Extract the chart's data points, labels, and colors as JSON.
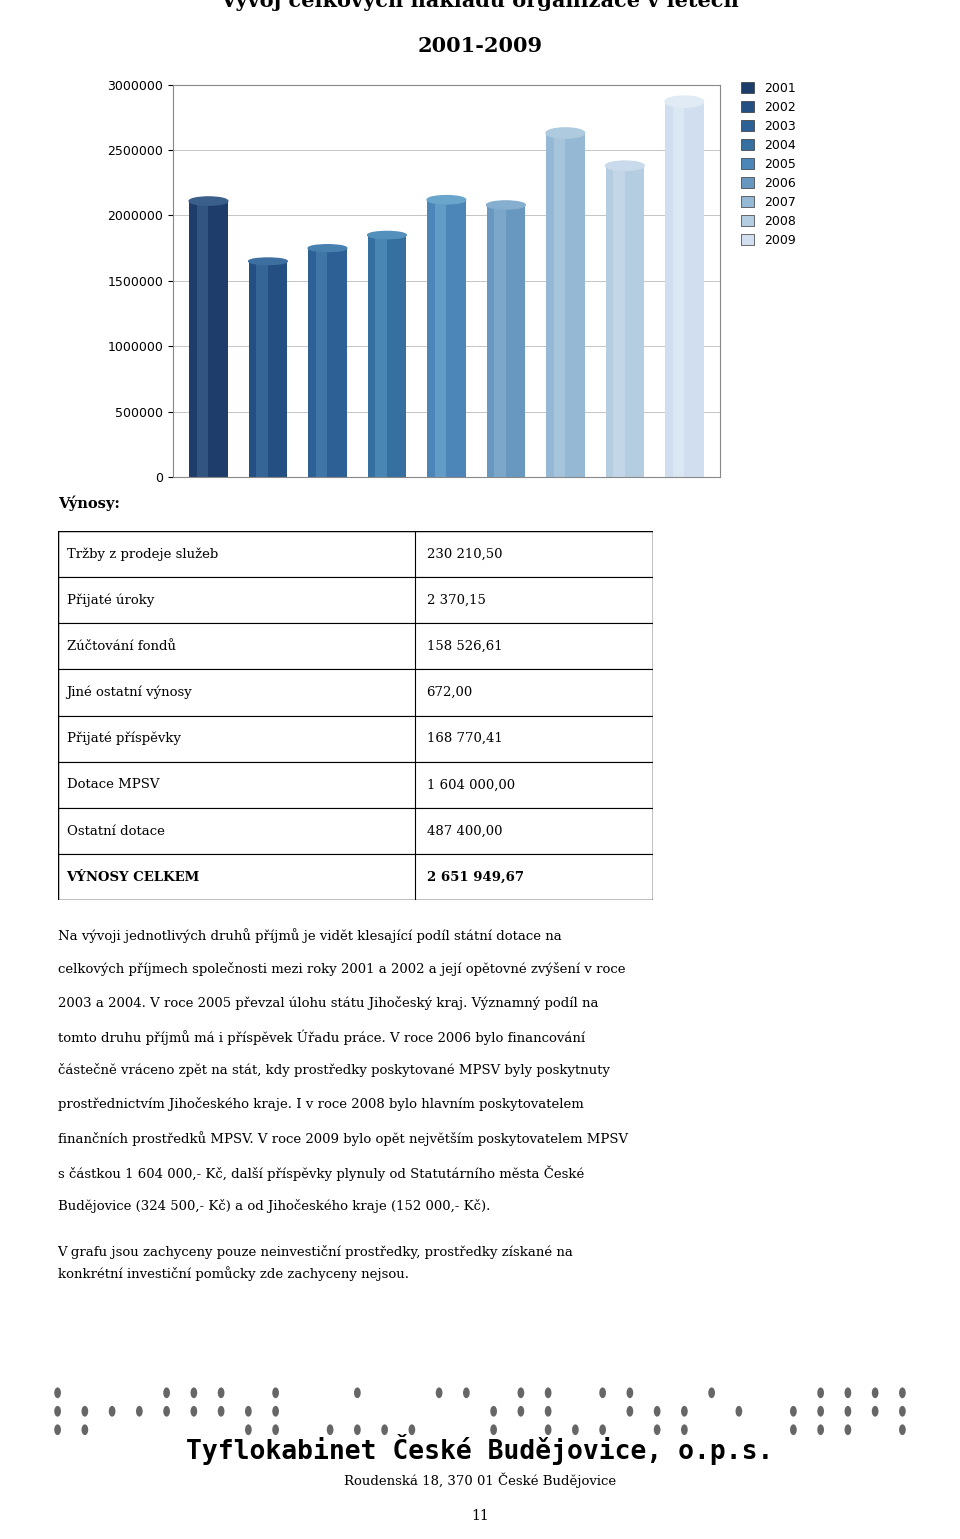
{
  "title_line1": "Vývoj celkových nákladů organizace v letech",
  "title_line2": "2001-2009",
  "years": [
    2001,
    2002,
    2003,
    2004,
    2005,
    2006,
    2007,
    2008,
    2009
  ],
  "values": [
    2110000,
    1650000,
    1750000,
    1850000,
    2120000,
    2080000,
    2630000,
    2380000,
    2870000
  ],
  "bar_colors_main": [
    "#1F3D6B",
    "#234F82",
    "#2D6094",
    "#3570A0",
    "#4C85B8",
    "#6898C0",
    "#95B8D4",
    "#B5CDE0",
    "#D0DEF0"
  ],
  "bar_colors_light": [
    "#3A5F8A",
    "#3D6FA0",
    "#4880B0",
    "#5490BC",
    "#6AA5CC",
    "#85AECF",
    "#AECADE",
    "#C9DAEC",
    "#E0EBF5"
  ],
  "ylim": [
    0,
    3000000
  ],
  "yticks": [
    0,
    500000,
    1000000,
    1500000,
    2000000,
    2500000,
    3000000
  ],
  "legend_labels": [
    "2001",
    "2002",
    "2003",
    "2004",
    "2005",
    "2006",
    "2007",
    "2008",
    "2009"
  ],
  "table_header": "Výnosy:",
  "table_rows": [
    [
      "Tržby z prodeje služeb",
      "230 210,50"
    ],
    [
      "Přijaté úroky",
      "2 370,15"
    ],
    [
      "Zúčtování fondů",
      "158 526,61"
    ],
    [
      "Jiné ostatní výnosy",
      "672,00"
    ],
    [
      "Přijaté příspěvky",
      "168 770,41"
    ],
    [
      "Dotace MPSV",
      "1 604 000,00"
    ],
    [
      "Ostatní dotace",
      "487 400,00"
    ],
    [
      "VÝNOSY CELKEM",
      "2 651 949,67"
    ]
  ],
  "body_text_lines": [
    "Na vývoji jednotlivých druhů příjmů je vidět klesající podíl státní dotace na",
    "celkových příjmech společnosti mezi roky 2001 a 2002 a její opětovné zvýšení v roce",
    "2003 a 2004. V roce 2005 převzal úlohu státu Jihočeský kraj. Významný podíl na",
    "tomto druhu příjmů má i příspěvek Úřadu práce. V roce 2006 bylo financování",
    "částečně vráceno zpět na stát, kdy prostředky poskytované MPSV byly poskytnuty",
    "prostřednictvím Jihočeského kraje. I v roce 2008 bylo hlavním poskytovatelem",
    "finančních prostředků MPSV. V roce 2009 bylo opět největším poskytovatelem MPSV",
    "s částkou 1 604 000,- Kč, další příspěvky plynuly od Statutárního města České",
    "Budějovice (324 500,- Kč) a od Jihočeského kraje (152 000,- Kč).",
    "V grafu jsou zachyceny pouze neinvestiční prostředky, prostředky získané na",
    "konkrétní investiční pomůcky zde zachyceny nejsou."
  ],
  "footer_company": "Tyflokabinet České Budějovice, o.p.s.",
  "footer_address": "Roudenská 18, 370 01 České Budějovice",
  "page_number": "11",
  "background_color": "#FFFFFF",
  "chart_bg": "#FFFFFF",
  "chart_border_color": "#888888",
  "grid_color": "#BBBBBB"
}
